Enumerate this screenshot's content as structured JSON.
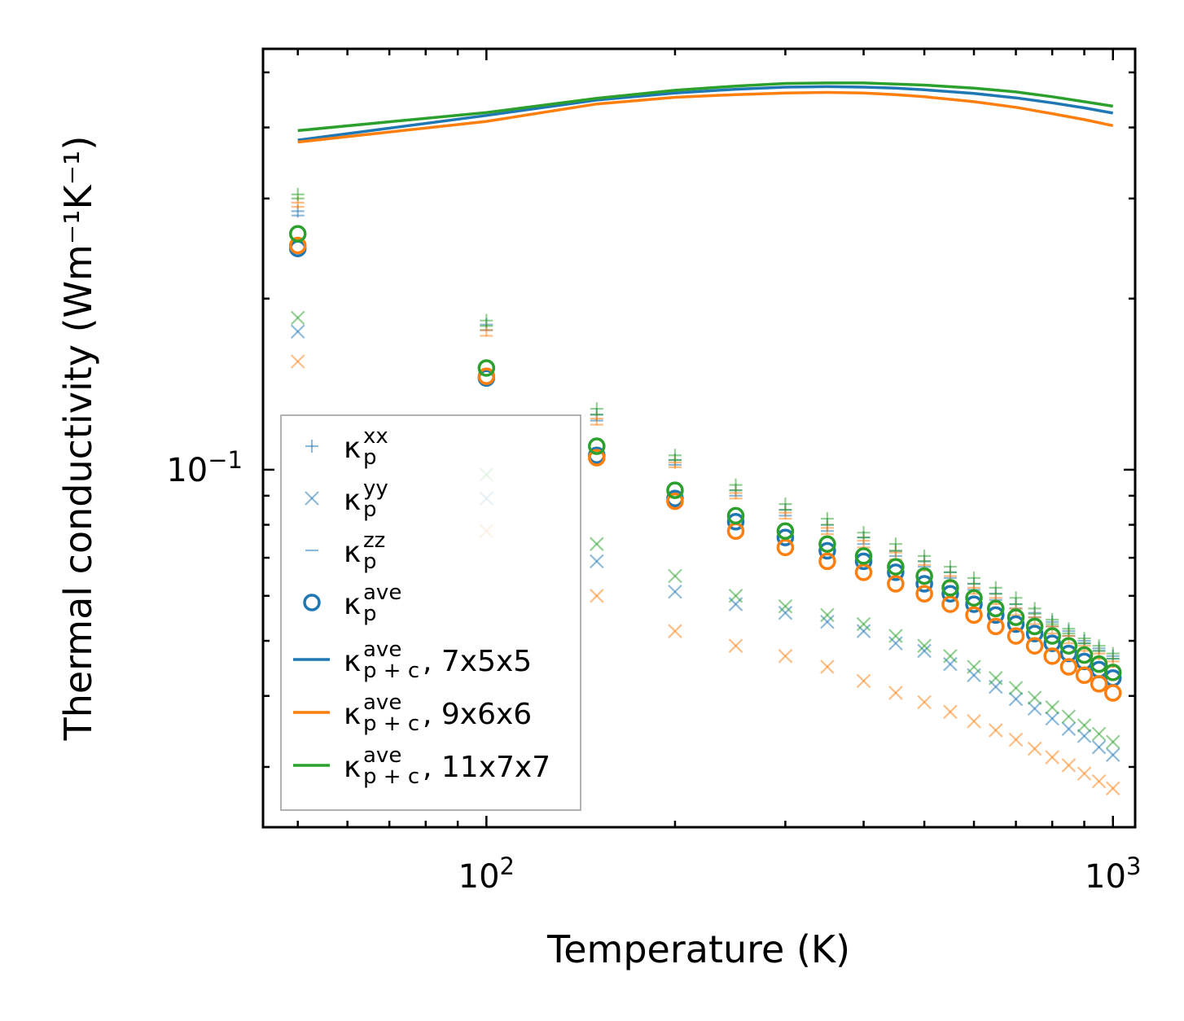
{
  "chart_data": {
    "type": "scatter",
    "xscale": "log",
    "yscale": "log",
    "xlabel": "Temperature (K)",
    "ylabel": "Thermal conductivity (Wm⁻¹K⁻¹)",
    "xlim": [
      44,
      1085
    ],
    "ylim": [
      0.0235,
      0.55
    ],
    "x_major_ticks": [
      {
        "value": 100,
        "label": "10",
        "exp": "2"
      },
      {
        "value": 1000,
        "label": "10",
        "exp": "3"
      }
    ],
    "y_major_ticks": [
      {
        "value": 0.1,
        "label": "10",
        "exp": "−1"
      }
    ],
    "x": [
      50,
      100,
      150,
      200,
      250,
      300,
      350,
      400,
      450,
      500,
      550,
      600,
      650,
      700,
      750,
      800,
      850,
      900,
      950,
      1000
    ],
    "colors": {
      "blue": "#1f77b4",
      "orange": "#ff7f0e",
      "green": "#2ca02c"
    },
    "groups": [
      {
        "name": "7x5x5",
        "color": "#1f77b4",
        "kappa_p_xx": [
          0.285,
          0.18,
          0.125,
          0.104,
          0.092,
          0.085,
          0.08,
          0.076,
          0.072,
          0.069,
          0.066,
          0.063,
          0.0605,
          0.058,
          0.056,
          0.054,
          0.052,
          0.05,
          0.0485,
          0.047
        ],
        "kappa_p_yy": [
          0.175,
          0.089,
          0.069,
          0.061,
          0.058,
          0.056,
          0.054,
          0.052,
          0.0495,
          0.048,
          0.0455,
          0.0435,
          0.0415,
          0.0395,
          0.038,
          0.0365,
          0.035,
          0.034,
          0.0325,
          0.0315
        ],
        "kappa_p_zz": [
          0.28,
          0.176,
          0.122,
          0.102,
          0.09,
          0.083,
          0.078,
          0.074,
          0.0705,
          0.0675,
          0.0645,
          0.0615,
          0.059,
          0.057,
          0.055,
          0.053,
          0.051,
          0.0495,
          0.048,
          0.0465
        ],
        "kappa_p_ave": [
          0.245,
          0.145,
          0.106,
          0.089,
          0.081,
          0.076,
          0.072,
          0.069,
          0.066,
          0.063,
          0.0605,
          0.058,
          0.0555,
          0.0535,
          0.0515,
          0.0495,
          0.0475,
          0.046,
          0.0445,
          0.043
        ],
        "kappa_pc_ave_T": [
          50,
          100,
          150,
          200,
          250,
          300,
          350,
          400,
          450,
          500,
          600,
          700,
          800,
          900,
          1000
        ],
        "kappa_pc_ave": [
          0.38,
          0.42,
          0.447,
          0.46,
          0.467,
          0.471,
          0.472,
          0.471,
          0.469,
          0.466,
          0.459,
          0.451,
          0.442,
          0.433,
          0.424
        ]
      },
      {
        "name": "9x6x6",
        "color": "#ff7f0e",
        "kappa_p_xx": [
          0.295,
          0.176,
          0.123,
          0.103,
          0.091,
          0.084,
          0.079,
          0.075,
          0.0715,
          0.068,
          0.065,
          0.062,
          0.0595,
          0.057,
          0.055,
          0.053,
          0.051,
          0.049,
          0.0475,
          0.046
        ],
        "kappa_p_yy": [
          0.155,
          0.078,
          0.06,
          0.052,
          0.049,
          0.047,
          0.045,
          0.0425,
          0.0405,
          0.039,
          0.0375,
          0.0361,
          0.0348,
          0.0335,
          0.0323,
          0.0312,
          0.0302,
          0.0292,
          0.0283,
          0.0275
        ],
        "kappa_p_zz": [
          0.29,
          0.172,
          0.12,
          0.101,
          0.089,
          0.082,
          0.077,
          0.073,
          0.0695,
          0.0665,
          0.0635,
          0.0605,
          0.058,
          0.0555,
          0.0535,
          0.0515,
          0.0495,
          0.048,
          0.0465,
          0.045
        ],
        "kappa_p_ave": [
          0.248,
          0.146,
          0.105,
          0.088,
          0.078,
          0.073,
          0.069,
          0.066,
          0.063,
          0.0605,
          0.058,
          0.0555,
          0.053,
          0.051,
          0.049,
          0.047,
          0.045,
          0.0435,
          0.042,
          0.0405
        ],
        "kappa_pc_ave_T": [
          50,
          100,
          150,
          200,
          250,
          300,
          350,
          400,
          450,
          500,
          600,
          700,
          800,
          900,
          1000
        ],
        "kappa_pc_ave": [
          0.377,
          0.41,
          0.44,
          0.452,
          0.457,
          0.46,
          0.461,
          0.46,
          0.457,
          0.453,
          0.444,
          0.434,
          0.423,
          0.413,
          0.403
        ]
      },
      {
        "name": "11x7x7",
        "color": "#2ca02c",
        "kappa_p_xx": [
          0.305,
          0.183,
          0.128,
          0.106,
          0.094,
          0.087,
          0.082,
          0.0775,
          0.074,
          0.0705,
          0.0675,
          0.0645,
          0.062,
          0.0595,
          0.057,
          0.0545,
          0.0525,
          0.0505,
          0.049,
          0.0475
        ],
        "kappa_p_yy": [
          0.185,
          0.098,
          0.074,
          0.065,
          0.06,
          0.0575,
          0.0555,
          0.0535,
          0.051,
          0.049,
          0.047,
          0.045,
          0.043,
          0.0413,
          0.0397,
          0.0382,
          0.0368,
          0.0355,
          0.0343,
          0.0332
        ],
        "kappa_p_zz": [
          0.3,
          0.179,
          0.125,
          0.104,
          0.092,
          0.085,
          0.08,
          0.076,
          0.072,
          0.069,
          0.066,
          0.063,
          0.0605,
          0.058,
          0.0558,
          0.0535,
          0.0515,
          0.0495,
          0.048,
          0.0465
        ],
        "kappa_p_ave": [
          0.26,
          0.151,
          0.11,
          0.092,
          0.083,
          0.078,
          0.074,
          0.0705,
          0.0675,
          0.065,
          0.062,
          0.0595,
          0.057,
          0.055,
          0.053,
          0.051,
          0.049,
          0.0472,
          0.0455,
          0.044
        ],
        "kappa_pc_ave_T": [
          50,
          100,
          150,
          200,
          250,
          300,
          350,
          400,
          450,
          500,
          600,
          700,
          800,
          900,
          1000
        ],
        "kappa_pc_ave": [
          0.395,
          0.425,
          0.45,
          0.465,
          0.473,
          0.478,
          0.479,
          0.479,
          0.477,
          0.475,
          0.469,
          0.462,
          0.453,
          0.444,
          0.436
        ]
      }
    ],
    "legend": {
      "location": "lower-left",
      "entries": [
        {
          "marker": "plus",
          "color": "#1f77b4",
          "symbol": "κ",
          "sub": "p",
          "sup": "xx",
          "suffix": ""
        },
        {
          "marker": "x",
          "color": "#1f77b4",
          "symbol": "κ",
          "sub": "p",
          "sup": "yy",
          "suffix": ""
        },
        {
          "marker": "hline",
          "color": "#1f77b4",
          "symbol": "κ",
          "sub": "p",
          "sup": "zz",
          "suffix": ""
        },
        {
          "marker": "circle",
          "color": "#1f77b4",
          "symbol": "κ",
          "sub": "p",
          "sup": "ave",
          "suffix": ""
        },
        {
          "marker": "line",
          "color": "#1f77b4",
          "symbol": "κ",
          "sub": "p + c",
          "sup": "ave",
          "suffix": ", 7x5x5"
        },
        {
          "marker": "line",
          "color": "#ff7f0e",
          "symbol": "κ",
          "sub": "p + c",
          "sup": "ave",
          "suffix": ", 9x6x6"
        },
        {
          "marker": "line",
          "color": "#2ca02c",
          "symbol": "κ",
          "sub": "p + c",
          "sup": "ave",
          "suffix": ", 11x7x7"
        }
      ]
    }
  }
}
